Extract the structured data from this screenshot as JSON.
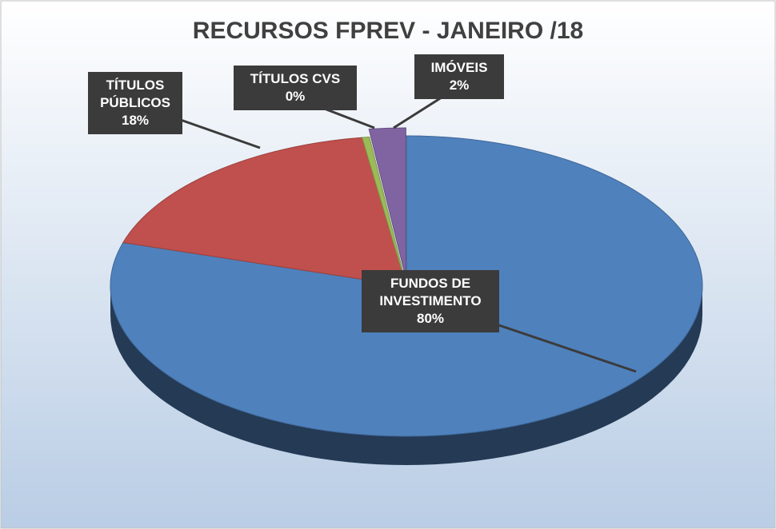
{
  "chart_data": {
    "type": "pie",
    "title": "RECURSOS FPREV - JANEIRO /18",
    "categories": [
      "FUNDOS DE INVESTIMENTO",
      "TÍTULOS PÚBLICOS",
      "TÍTULOS CVS",
      "IMÓVEIS"
    ],
    "values": [
      80,
      18,
      0.4,
      2
    ],
    "value_labels": [
      "80%",
      "18%",
      "0%",
      "2%"
    ],
    "colors": [
      "#4f81bd",
      "#c0504d",
      "#9bbb59",
      "#8064a2"
    ]
  }
}
